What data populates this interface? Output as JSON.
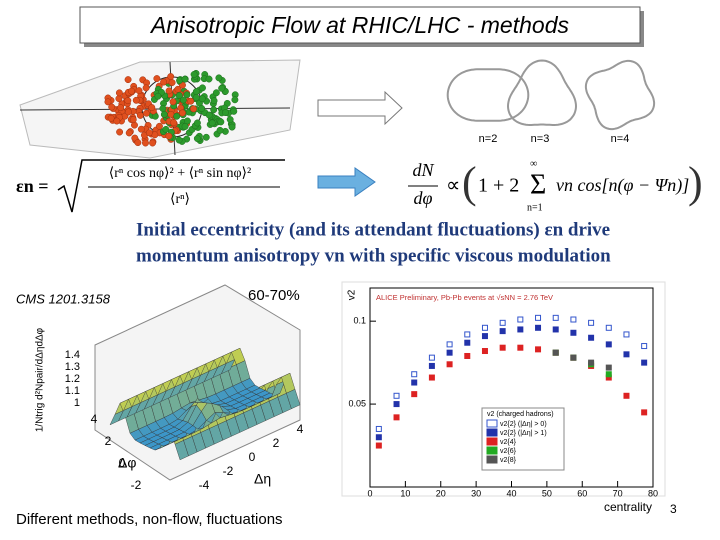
{
  "slide": {
    "title": "Anisotropic Flow at RHIC/LHC - methods",
    "harmonics": [
      "n=2",
      "n=3",
      "n=4"
    ],
    "eps_formula": {
      "lhs": "εn =",
      "numerator": "⟨rⁿ cos nφ⟩² + ⟨rⁿ sin nφ⟩²",
      "denominator": "⟨rⁿ⟩"
    },
    "flow_formula": {
      "dn": "dN",
      "dphi": "dφ",
      "prop": "∝",
      "one": "1 + 2",
      "sum": "Σ",
      "lower": "n=1",
      "upper": "∞",
      "body": "vn cos[n(φ − Ψn)]"
    },
    "statement": [
      "Initial eccentricity (and its attendant fluctuations) εn drive",
      "momentum anisotropy vn with specific viscous modulation"
    ],
    "cms_label": "CMS 1201.3158",
    "centrality_bin": "60-70%",
    "surface": {
      "zlabel": "1/Ntrig d²Npair/dΔηdΔφ",
      "zticks": [
        "1.4",
        "1.3",
        "1.2",
        "1.1",
        "1"
      ],
      "phi_label": "Δφ",
      "phi_ticks": [
        "4",
        "2",
        "0",
        "-2"
      ],
      "eta_label": "Δη",
      "eta_ticks": [
        "4",
        "2",
        "0",
        "-2",
        "-4"
      ]
    },
    "footer": "Different  methods, non-flow, fluctuations",
    "page_number": "3"
  },
  "chart_data": {
    "type": "scatter",
    "title": "ALICE Preliminary, Pb-Pb events at √sNN = 2.76 TeV",
    "xlabel": "centrality",
    "ylabel": "v2",
    "legend_title": "v2 (charged hadrons)",
    "xlim": [
      0,
      80
    ],
    "xticks": [
      0,
      10,
      20,
      30,
      40,
      50,
      60,
      70,
      80
    ],
    "ylim": [
      0,
      0.12
    ],
    "yticks": [
      0.05,
      0.1
    ],
    "series": [
      {
        "name": "v2{2} (|Δη| > 0)",
        "color": "#3355cc",
        "marker": "open-square",
        "x": [
          2.5,
          7.5,
          12.5,
          17.5,
          22.5,
          27.5,
          32.5,
          37.5,
          42.5,
          47.5,
          52.5,
          57.5,
          62.5,
          67.5,
          72.5,
          77.5
        ],
        "values": [
          0.035,
          0.055,
          0.068,
          0.078,
          0.086,
          0.092,
          0.096,
          0.099,
          0.101,
          0.102,
          0.102,
          0.101,
          0.099,
          0.096,
          0.092,
          0.085
        ]
      },
      {
        "name": "v2{2} (|Δη| > 1)",
        "color": "#2233aa",
        "marker": "filled-square",
        "x": [
          2.5,
          7.5,
          12.5,
          17.5,
          22.5,
          27.5,
          32.5,
          37.5,
          42.5,
          47.5,
          52.5,
          57.5,
          62.5,
          67.5,
          72.5,
          77.5
        ],
        "values": [
          0.03,
          0.05,
          0.063,
          0.073,
          0.081,
          0.087,
          0.091,
          0.094,
          0.095,
          0.096,
          0.095,
          0.093,
          0.09,
          0.086,
          0.08,
          0.075
        ]
      },
      {
        "name": "v2{4}",
        "color": "#dd2222",
        "marker": "filled-square",
        "x": [
          2.5,
          7.5,
          12.5,
          17.5,
          22.5,
          27.5,
          32.5,
          37.5,
          42.5,
          47.5,
          52.5,
          57.5,
          62.5,
          67.5,
          72.5,
          77.5
        ],
        "values": [
          0.025,
          0.042,
          0.056,
          0.066,
          0.074,
          0.079,
          0.082,
          0.084,
          0.084,
          0.083,
          0.081,
          0.078,
          0.073,
          0.066,
          0.055,
          0.045
        ]
      },
      {
        "name": "v2{6}",
        "color": "#22aa22",
        "marker": "filled-square",
        "x": [
          52.5,
          57.5,
          62.5,
          67.5
        ],
        "values": [
          0.081,
          0.078,
          0.074,
          0.068
        ]
      },
      {
        "name": "v2{8}",
        "color": "#555555",
        "marker": "filled-square",
        "x": [
          52.5,
          57.5,
          62.5,
          67.5
        ],
        "values": [
          0.081,
          0.078,
          0.075,
          0.072
        ]
      }
    ]
  }
}
